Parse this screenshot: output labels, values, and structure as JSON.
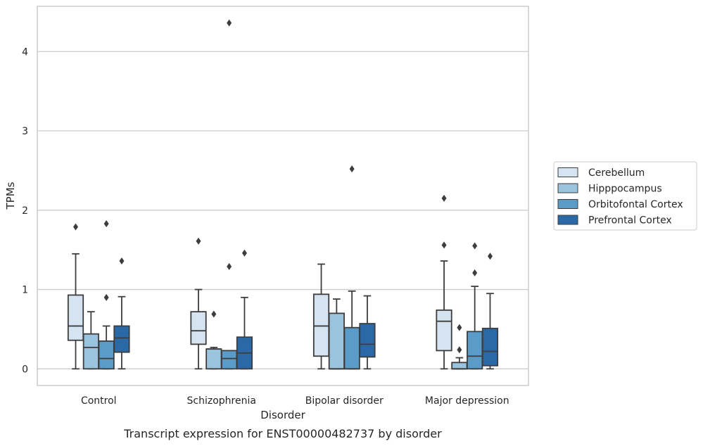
{
  "chart_data": {
    "type": "box",
    "title": "",
    "caption": "Transcript expression for ENST00000482737 by disorder",
    "xlabel": "Disorder",
    "ylabel": "TPMs",
    "ylim": [
      -0.21,
      4.57
    ],
    "yticks": [
      0,
      1,
      2,
      3,
      4
    ],
    "grid": "horizontal",
    "legend_position": "right",
    "categories": [
      "Control",
      "Schizophrenia",
      "Bipolar disorder",
      "Major depression"
    ],
    "series": [
      {
        "name": "Cerebellum",
        "color": "#d6e4f2",
        "boxes": [
          {
            "whislo": 0.0,
            "q1": 0.36,
            "med": 0.54,
            "q3": 0.93,
            "whishi": 1.45,
            "fliers": [
              1.79
            ]
          },
          {
            "whislo": 0.0,
            "q1": 0.31,
            "med": 0.48,
            "q3": 0.72,
            "whishi": 1.0,
            "fliers": [
              1.61
            ]
          },
          {
            "whislo": 0.0,
            "q1": 0.16,
            "med": 0.54,
            "q3": 0.94,
            "whishi": 1.32,
            "fliers": []
          },
          {
            "whislo": 0.0,
            "q1": 0.23,
            "med": 0.6,
            "q3": 0.74,
            "whishi": 1.36,
            "fliers": [
              1.56,
              2.15
            ]
          }
        ]
      },
      {
        "name": "Hipppocampus",
        "color": "#9cc3de",
        "boxes": [
          {
            "whislo": 0.0,
            "q1": 0.0,
            "med": 0.27,
            "q3": 0.44,
            "whishi": 0.72,
            "fliers": []
          },
          {
            "whislo": 0.0,
            "q1": 0.0,
            "med": 0.25,
            "q3": 0.25,
            "whishi": 0.27,
            "fliers": [
              0.69
            ]
          },
          {
            "whislo": 0.0,
            "q1": 0.0,
            "med": 0.0,
            "q3": 0.7,
            "whishi": 0.88,
            "fliers": []
          },
          {
            "whislo": 0.0,
            "q1": 0.0,
            "med": 0.0,
            "q3": 0.08,
            "whishi": 0.14,
            "fliers": [
              0.24,
              0.52
            ]
          }
        ]
      },
      {
        "name": "Orbitofontal Cortex",
        "color": "#5a9bc8",
        "boxes": [
          {
            "whislo": 0.0,
            "q1": 0.0,
            "med": 0.13,
            "q3": 0.35,
            "whishi": 0.54,
            "fliers": [
              0.9,
              1.83
            ]
          },
          {
            "whislo": 0.0,
            "q1": 0.0,
            "med": 0.13,
            "q3": 0.23,
            "whishi": 0.23,
            "fliers": [
              1.29,
              4.36
            ]
          },
          {
            "whislo": 0.0,
            "q1": 0.0,
            "med": 0.0,
            "q3": 0.52,
            "whishi": 0.98,
            "fliers": [
              2.52
            ]
          },
          {
            "whislo": 0.0,
            "q1": 0.0,
            "med": 0.16,
            "q3": 0.47,
            "whishi": 1.04,
            "fliers": [
              1.21,
              1.55
            ]
          }
        ]
      },
      {
        "name": "Prefrontal Cortex",
        "color": "#2b69a6",
        "boxes": [
          {
            "whislo": 0.0,
            "q1": 0.21,
            "med": 0.39,
            "q3": 0.54,
            "whishi": 0.91,
            "fliers": [
              1.36
            ]
          },
          {
            "whislo": 0.0,
            "q1": 0.0,
            "med": 0.2,
            "q3": 0.4,
            "whishi": 0.9,
            "fliers": [
              1.46
            ]
          },
          {
            "whislo": 0.0,
            "q1": 0.15,
            "med": 0.31,
            "q3": 0.57,
            "whishi": 0.92,
            "fliers": []
          },
          {
            "whislo": 0.0,
            "q1": 0.04,
            "med": 0.22,
            "q3": 0.51,
            "whishi": 0.95,
            "fliers": [
              1.42
            ]
          }
        ]
      }
    ]
  }
}
